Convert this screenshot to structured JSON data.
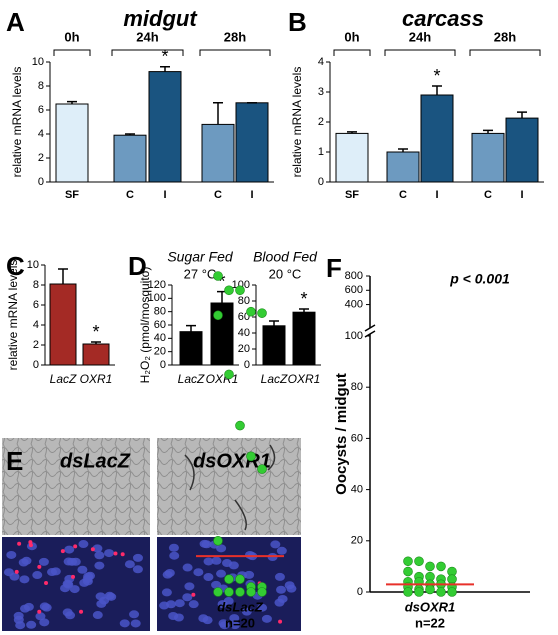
{
  "chart_data": [
    {
      "type": "bar",
      "panel_label": "A",
      "title": "midgut",
      "y_label": "relative mRNA levels",
      "groups": [
        "0h",
        "24h",
        "28h"
      ],
      "categories": [
        "SF",
        "C",
        "I",
        "C",
        "I"
      ],
      "values": [
        6.5,
        3.9,
        9.2,
        4.8,
        6.6
      ],
      "errors": [
        0.2,
        0.1,
        0.4,
        1.8,
        0
      ],
      "colors": [
        "#deeef9",
        "#6d9ac0",
        "#1a5480",
        "#6d9ac0",
        "#1a5480"
      ],
      "significance": [
        null,
        null,
        "*",
        null,
        null
      ],
      "ylim": [
        0,
        10
      ],
      "yticks": [
        0,
        2,
        4,
        6,
        8,
        10
      ]
    },
    {
      "type": "bar",
      "panel_label": "B",
      "title": "carcass",
      "y_label": "relative mRNA levels",
      "groups": [
        "0h",
        "24h",
        "28h"
      ],
      "categories": [
        "SF",
        "C",
        "I",
        "C",
        "I"
      ],
      "values": [
        1.62,
        1.0,
        2.9,
        1.62,
        2.13
      ],
      "errors": [
        0.05,
        0.1,
        0.3,
        0.1,
        0.2
      ],
      "colors": [
        "#deeef9",
        "#6d9ac0",
        "#1a5480",
        "#6d9ac0",
        "#1a5480"
      ],
      "significance": [
        null,
        null,
        "*",
        null,
        null
      ],
      "ylim": [
        0,
        4
      ],
      "yticks": [
        0,
        1,
        2,
        3,
        4
      ]
    },
    {
      "type": "bar",
      "panel_label": "C",
      "y_label": "relative mRNA levels",
      "categories": [
        "LacZ",
        "OXR1"
      ],
      "values": [
        8.1,
        2.1
      ],
      "errors": [
        1.5,
        0.2
      ],
      "color": "#a42a25",
      "significance": [
        null,
        "*"
      ],
      "ylim": [
        0,
        10
      ],
      "yticks": [
        0,
        2,
        4,
        6,
        8,
        10
      ]
    },
    {
      "type": "bar",
      "panel_label": "D",
      "title": "Sugar Fed",
      "subtitle": "27 °C",
      "y_label": "H₂O₂ (pmol/mosquito)",
      "categories": [
        "LacZ",
        "OXR1"
      ],
      "values": [
        50,
        93
      ],
      "errors": [
        9,
        17
      ],
      "color": "#000000",
      "significance": [
        null,
        "*"
      ],
      "ylim": [
        0,
        120
      ],
      "yticks": [
        0,
        20,
        40,
        60,
        80,
        100,
        120
      ]
    },
    {
      "type": "bar",
      "title": "Blood Fed",
      "subtitle": "20 °C",
      "categories": [
        "LacZ",
        "OXR1"
      ],
      "values": [
        49,
        66
      ],
      "errors": [
        6,
        4
      ],
      "color": "#000000",
      "significance": [
        null,
        "*"
      ],
      "ylim": [
        0,
        100
      ],
      "yticks": [
        0,
        20,
        40,
        60,
        80,
        100
      ]
    },
    {
      "type": "dot",
      "panel_label": "F",
      "y_label": "Oocysts / midgut",
      "annotation": "p < 0.001",
      "categories": [
        "dsLacZ",
        "dsOXR1"
      ],
      "category_notes": [
        "n=20",
        "n=22"
      ],
      "values": [
        [
          800,
          600,
          600,
          300,
          280,
          250,
          85,
          65,
          53,
          48,
          20,
          5,
          5,
          2,
          2,
          0,
          0,
          0,
          0,
          0
        ],
        [
          12,
          12,
          10,
          10,
          8,
          8,
          6,
          6,
          5,
          5,
          4,
          4,
          3,
          3,
          2,
          2,
          1,
          1,
          0,
          0,
          0,
          0
        ]
      ],
      "color": "#33cc33",
      "center_values": [
        14,
        3
      ],
      "center_color": "#e8302a",
      "ylim": [
        0,
        800
      ],
      "ybreak": 100,
      "yticks": [
        0,
        20,
        40,
        60,
        80,
        100,
        400,
        600,
        800
      ]
    }
  ],
  "panel_e": {
    "panel_label": "E",
    "labels": [
      "dsLacZ",
      "dsOXR1"
    ]
  }
}
